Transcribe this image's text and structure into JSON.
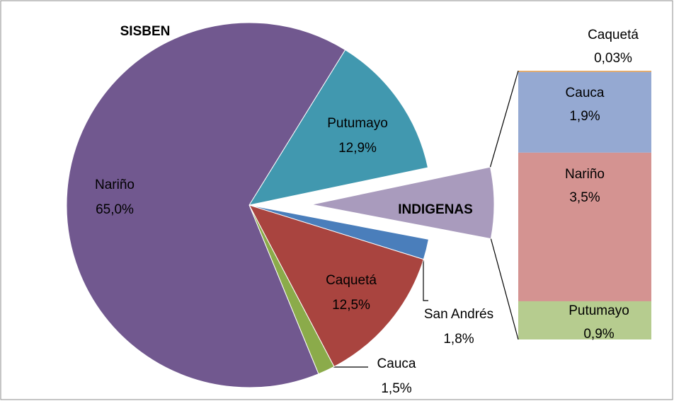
{
  "chart_data": {
    "type": "pie-of-bar",
    "title": "SISBEN",
    "pie": {
      "labels": [
        "Putumayo",
        "INDIGENAS",
        "San Andrés",
        "Caquetá",
        "Cauca",
        "Nariño"
      ],
      "values": [
        12.9,
        6.3,
        1.8,
        12.5,
        1.5,
        65.0
      ],
      "value_labels": [
        "12,9%",
        null,
        "1,8%",
        "12,5%",
        "1,5%",
        "65,0%"
      ],
      "colors": [
        "#4198af",
        "#a99bbd",
        "#4a7ebb",
        "#a9443f",
        "#8bab4a",
        "#71588f"
      ]
    },
    "bar": {
      "labels": [
        "Caquetá",
        "Cauca",
        "Nariño",
        "Putumayo"
      ],
      "values": [
        0.03,
        1.9,
        3.5,
        0.9
      ],
      "value_labels": [
        "0,03%",
        "1,9%",
        "3,5%",
        "0,9%"
      ],
      "colors": [
        "#e6a45a",
        "#95a9d2",
        "#d49391",
        "#b6cc8f"
      ]
    }
  }
}
